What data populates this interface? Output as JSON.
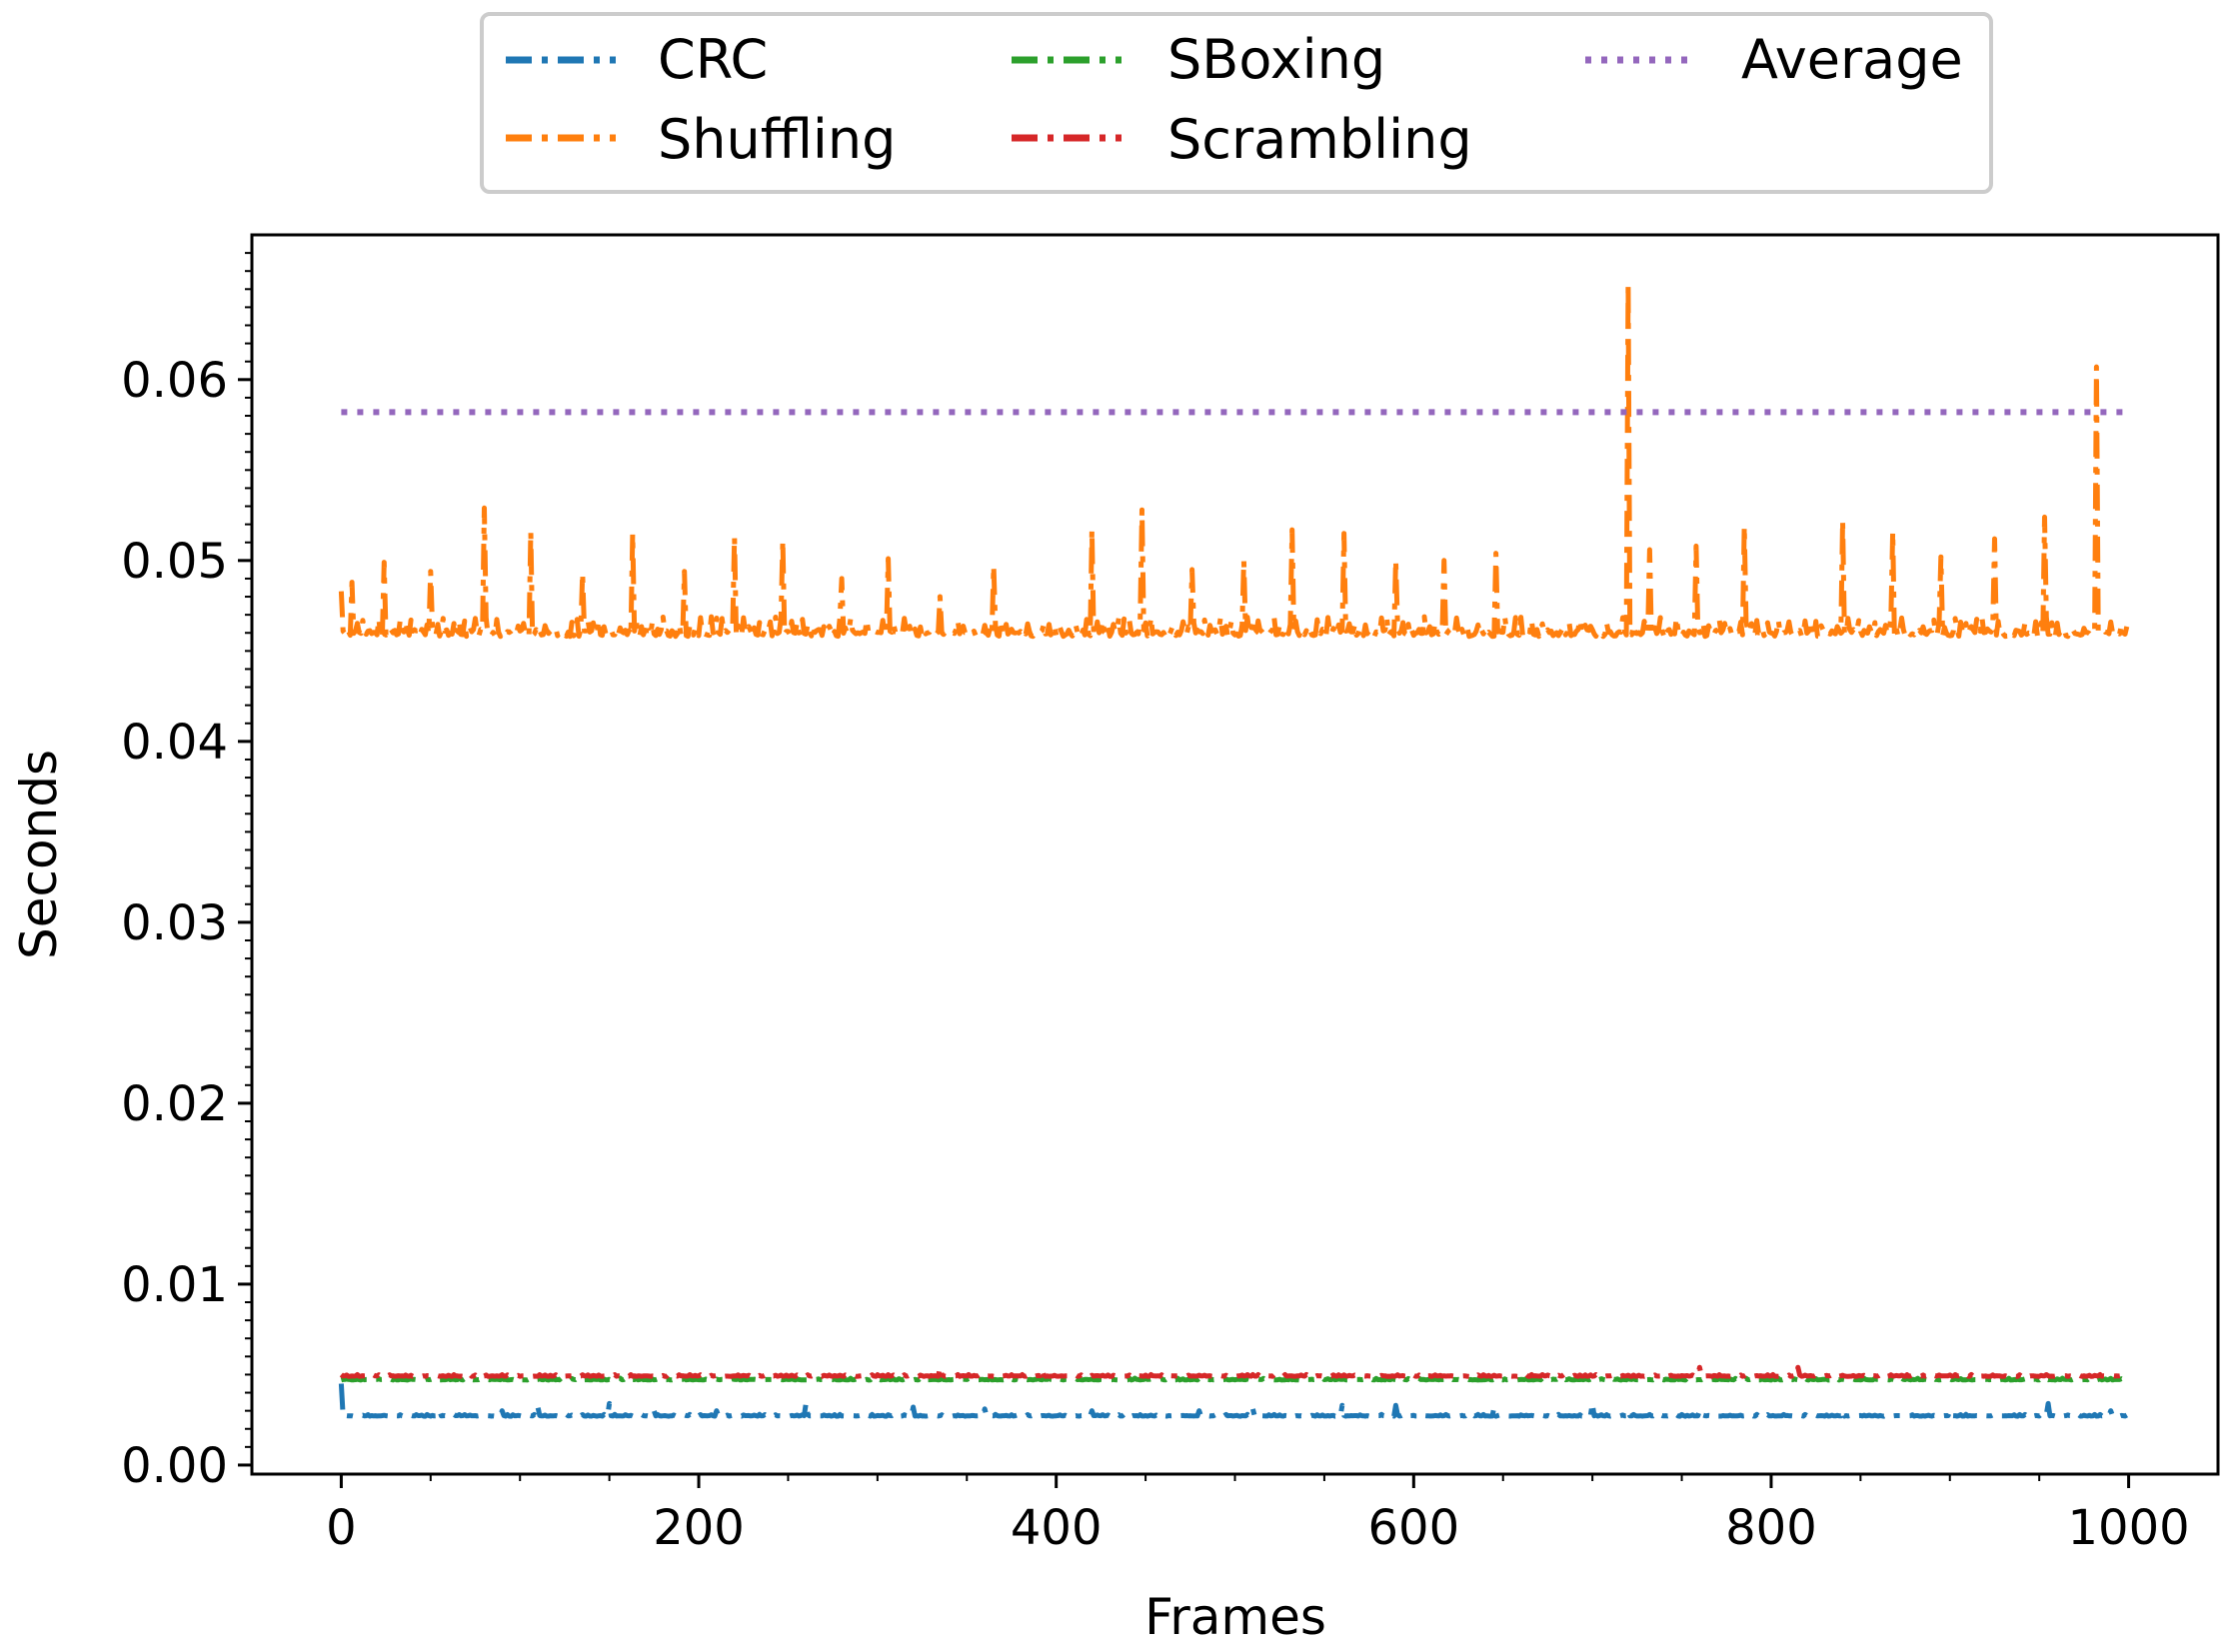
{
  "chart_data": {
    "type": "line",
    "title": "",
    "xlabel": "Frames",
    "ylabel": "Seconds",
    "xlim": [
      -50,
      1050
    ],
    "ylim": [
      -0.0005,
      0.068
    ],
    "x_ticks": [
      0,
      200,
      400,
      600,
      800,
      1000
    ],
    "x_tick_labels": [
      "0",
      "200",
      "400",
      "600",
      "800",
      "1000"
    ],
    "y_ticks": [
      0.0,
      0.01,
      0.02,
      0.03,
      0.04,
      0.05,
      0.06
    ],
    "y_tick_labels": [
      "0.00",
      "0.01",
      "0.02",
      "0.03",
      "0.04",
      "0.05",
      "0.06"
    ],
    "legend_position": "top-center-outside",
    "num_frames": 1000,
    "series": [
      {
        "name": "CRC",
        "color": "#1f77b4",
        "style": "dashdot",
        "base": 0.0027,
        "start_value": 0.0045,
        "spikes": [
          [
            55,
            0.003
          ],
          [
            90,
            0.003
          ],
          [
            110,
            0.0032
          ],
          [
            150,
            0.0034
          ],
          [
            175,
            0.003
          ],
          [
            210,
            0.003
          ],
          [
            260,
            0.0034
          ],
          [
            320,
            0.0032
          ],
          [
            360,
            0.0031
          ],
          [
            420,
            0.003
          ],
          [
            480,
            0.003
          ],
          [
            510,
            0.0031
          ],
          [
            560,
            0.0033
          ],
          [
            590,
            0.0033
          ],
          [
            645,
            0.0032
          ],
          [
            700,
            0.0034
          ],
          [
            720,
            0.003
          ],
          [
            760,
            0.003
          ],
          [
            840,
            0.003
          ],
          [
            900,
            0.003
          ],
          [
            955,
            0.0034
          ],
          [
            990,
            0.003
          ]
        ]
      },
      {
        "name": "Shuffling",
        "color": "#ff7f0e",
        "style": "dashdot",
        "base": 0.0458,
        "start_value": 0.0483,
        "spikes": [
          [
            6,
            0.0488
          ],
          [
            24,
            0.0499
          ],
          [
            50,
            0.0494
          ],
          [
            80,
            0.0529
          ],
          [
            106,
            0.0516
          ],
          [
            135,
            0.0493
          ],
          [
            163,
            0.0515
          ],
          [
            192,
            0.0494
          ],
          [
            220,
            0.0513
          ],
          [
            247,
            0.0511
          ],
          [
            280,
            0.049
          ],
          [
            306,
            0.0501
          ],
          [
            335,
            0.048
          ],
          [
            365,
            0.0497
          ],
          [
            420,
            0.0517
          ],
          [
            448,
            0.0528
          ],
          [
            476,
            0.0495
          ],
          [
            505,
            0.05
          ],
          [
            532,
            0.0517
          ],
          [
            561,
            0.0515
          ],
          [
            590,
            0.05
          ],
          [
            617,
            0.05
          ],
          [
            646,
            0.0504
          ],
          [
            720,
            0.0654
          ],
          [
            732,
            0.0506
          ],
          [
            758,
            0.0508
          ],
          [
            785,
            0.0519
          ],
          [
            840,
            0.0522
          ],
          [
            868,
            0.0516
          ],
          [
            895,
            0.0502
          ],
          [
            925,
            0.0512
          ],
          [
            953,
            0.0524
          ],
          [
            982,
            0.0607
          ]
        ]
      },
      {
        "name": "SBoxing",
        "color": "#2ca02c",
        "style": "dashdot",
        "base": 0.0047,
        "start_value": 0.0047,
        "spikes": []
      },
      {
        "name": "Scrambling",
        "color": "#d62728",
        "style": "dashdot",
        "base": 0.0049,
        "start_value": 0.005,
        "spikes": [
          [
            335,
            0.0054
          ],
          [
            392,
            0.0053
          ],
          [
            760,
            0.0054
          ],
          [
            815,
            0.0054
          ]
        ]
      },
      {
        "name": "Average",
        "color": "#9467bd",
        "style": "dotted",
        "base": 0.0582,
        "start_value": 0.0582,
        "spikes": []
      }
    ]
  }
}
